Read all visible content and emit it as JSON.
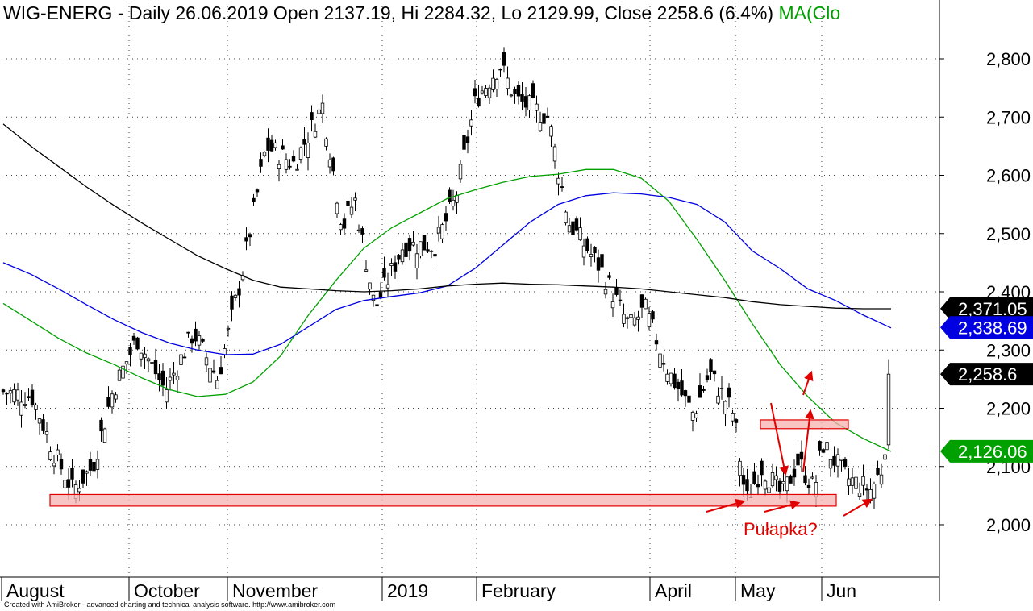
{
  "header": {
    "text": "WIG-ENERG - Daily 26.06.2019 Open 2137.19, Hi 2284.32, Lo 2129.99, Close 2258.6 (6.4%)",
    "ma_text": "MA(Clo"
  },
  "credit": "Created with AmiBroker - advanced charting and technical analysis software. http://www.amibroker.com",
  "annotation": "Pułapka?",
  "colors": {
    "ma_green": "#00a000",
    "ma_blue": "#0000e0",
    "ma_black": "#000000",
    "zone_fill": "#f7b0b0",
    "zone_stroke": "#e00000",
    "arrow": "#e00000"
  },
  "chart_data": {
    "type": "candlestick",
    "title": "WIG-ENERG - Daily",
    "ylim": [
      1880,
      2830
    ],
    "y_ticks": [
      2000,
      2100,
      2200,
      2300,
      2400,
      2500,
      2600,
      2700,
      2800
    ],
    "y_tick_labels": [
      "2,000",
      "2,100",
      "2,200",
      "2,300",
      "2,400",
      "2,500",
      "2,600",
      "2,700",
      "2,800"
    ],
    "x_labels": [
      "August",
      "October",
      "November",
      "2019",
      "February",
      "April",
      "May",
      "Jun"
    ],
    "last": {
      "open": 2137.19,
      "high": 2284.32,
      "low": 2129.99,
      "close": 2258.6,
      "change_pct": 6.4
    },
    "price_tags": [
      {
        "value": 2371.05,
        "label": "2,371.05",
        "color": "#000000"
      },
      {
        "value": 2338.69,
        "label": "2,338.69",
        "color": "#0000e0"
      },
      {
        "value": 2258.6,
        "label": "2,258.6",
        "color": "#000000"
      },
      {
        "value": 2126.06,
        "label": "2,126.06",
        "color": "#00a000"
      }
    ],
    "series": [
      {
        "color": "#00a000",
        "values": [
          2380,
          2350,
          2320,
          2295,
          2275,
          2252,
          2232,
          2220,
          2224,
          2245,
          2290,
          2360,
          2420,
          2475,
          2510,
          2535,
          2560,
          2575,
          2588,
          2598,
          2602,
          2610,
          2610,
          2595,
          2555,
          2490,
          2420,
          2345,
          2275,
          2220,
          2175,
          2148,
          2126
        ]
      },
      {
        "color": "#0000e0",
        "values": [
          2450,
          2430,
          2405,
          2378,
          2352,
          2330,
          2312,
          2300,
          2292,
          2293,
          2310,
          2340,
          2370,
          2385,
          2392,
          2398,
          2410,
          2440,
          2480,
          2520,
          2550,
          2565,
          2570,
          2568,
          2562,
          2550,
          2520,
          2470,
          2440,
          2405,
          2385,
          2360,
          2338
        ]
      },
      {
        "color": "#000000",
        "values": [
          2688,
          2650,
          2615,
          2580,
          2548,
          2518,
          2490,
          2462,
          2440,
          2420,
          2408,
          2405,
          2402,
          2400,
          2402,
          2405,
          2410,
          2413,
          2415,
          2413,
          2412,
          2410,
          2408,
          2405,
          2400,
          2395,
          2390,
          2383,
          2378,
          2375,
          2372,
          2371,
          2371
        ]
      }
    ],
    "annotations": [
      {
        "type": "zone",
        "from": 2032,
        "to": 2052,
        "label": ""
      },
      {
        "type": "zone",
        "from": 2165,
        "to": 2180,
        "label": ""
      },
      {
        "type": "text",
        "label": "Pułapka?"
      }
    ]
  }
}
